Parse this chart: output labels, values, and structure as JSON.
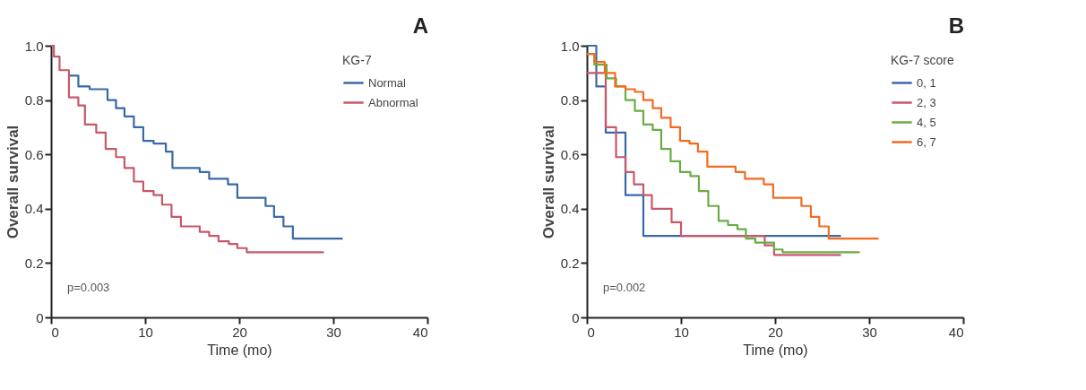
{
  "chart_data": [
    {
      "type": "step",
      "title": "A",
      "xlabel": "Time (mo)",
      "ylabel": "Overall survival",
      "legend_title": "KG-7",
      "legend": "top right",
      "grid": false,
      "marker": "none",
      "line_style": "solid",
      "xlim": [
        0,
        40
      ],
      "xticks": [
        0,
        10,
        20,
        30,
        40
      ],
      "ylim": [
        0,
        1
      ],
      "yticks": [
        0,
        0.2,
        0.4,
        0.6,
        0.8,
        {
          "value": 1,
          "label": "1.0"
        }
      ],
      "annotations": [
        "p=0.003"
      ],
      "series": [
        {
          "name": "Normal",
          "color": "#3a6aa5",
          "x": [
            1.9,
            2.9,
            4.1,
            6.0,
            6.9,
            7.8,
            8.8,
            9.8,
            10.9,
            12.2,
            12.9,
            15.8,
            16.8,
            18.8,
            19.8,
            22.8,
            23.7,
            24.7,
            25.7,
            31
          ],
          "values": [
            0.89,
            0.85,
            0.84,
            0.8,
            0.77,
            0.74,
            0.7,
            0.65,
            0.64,
            0.61,
            0.55,
            0.535,
            0.51,
            0.49,
            0.44,
            0.41,
            0.37,
            0.335,
            0.29,
            0.29
          ]
        },
        {
          "name": "Abnormal",
          "color": "#c8576a",
          "x": [
            0,
            0.3,
            0.9,
            1.9,
            2.9,
            3.6,
            4.8,
            5.8,
            6.9,
            7.8,
            8.8,
            9.8,
            10.9,
            11.8,
            12.8,
            13.8,
            15.8,
            16.8,
            17.8,
            18.9,
            19.8,
            20.8,
            29
          ],
          "values": [
            1.0,
            0.96,
            0.91,
            0.81,
            0.78,
            0.71,
            0.68,
            0.62,
            0.59,
            0.55,
            0.5,
            0.465,
            0.45,
            0.415,
            0.37,
            0.335,
            0.315,
            0.3,
            0.28,
            0.27,
            0.255,
            0.24,
            0.24
          ]
        }
      ]
    },
    {
      "type": "step",
      "title": "B",
      "xlabel": "Time (mo)",
      "ylabel": "Overall survival",
      "legend_title": "KG-7 score",
      "legend": "top right",
      "grid": false,
      "marker": "none",
      "line_style": "solid",
      "xlim": [
        0,
        40
      ],
      "xticks": [
        0,
        10,
        20,
        30,
        40
      ],
      "ylim": [
        0,
        1
      ],
      "yticks": [
        0,
        0.2,
        0.4,
        0.6,
        0.8,
        {
          "value": 1,
          "label": "1.0"
        }
      ],
      "annotations": [
        "p=0.002"
      ],
      "series": [
        {
          "name": "0, 1",
          "color": "#3a6aa5",
          "x": [
            0,
            1.0,
            2.0,
            4.1,
            6.0,
            27
          ],
          "values": [
            1.0,
            0.85,
            0.68,
            0.45,
            0.3,
            0.3
          ]
        },
        {
          "name": "2, 3",
          "color": "#c8576a",
          "x": [
            0,
            2.0,
            3.1,
            4.1,
            5.0,
            6.0,
            6.9,
            9.0,
            10.0,
            18.9,
            19.9,
            27
          ],
          "values": [
            0.9,
            0.7,
            0.59,
            0.535,
            0.49,
            0.45,
            0.4,
            0.35,
            0.3,
            0.265,
            0.23,
            0.23
          ]
        },
        {
          "name": "4, 5",
          "color": "#6aac44",
          "x": [
            0,
            0.8,
            2.1,
            3.1,
            4.1,
            5.1,
            6.0,
            7.0,
            7.9,
            8.9,
            9.9,
            11.0,
            11.9,
            12.9,
            14.0,
            15.0,
            16.0,
            16.9,
            17.9,
            19.9,
            20.8,
            29
          ],
          "values": [
            0.97,
            0.93,
            0.88,
            0.85,
            0.8,
            0.76,
            0.71,
            0.69,
            0.62,
            0.575,
            0.535,
            0.52,
            0.465,
            0.41,
            0.355,
            0.34,
            0.325,
            0.29,
            0.275,
            0.25,
            0.24,
            0.24
          ]
        },
        {
          "name": "6, 7",
          "color": "#f26b21",
          "x": [
            0,
            0.8,
            1.9,
            3.0,
            4.1,
            5.1,
            6.0,
            7.0,
            7.9,
            8.9,
            9.9,
            10.9,
            11.8,
            12.8,
            15.8,
            16.8,
            18.8,
            19.8,
            22.8,
            23.8,
            24.7,
            25.7,
            31
          ],
          "values": [
            0.97,
            0.94,
            0.9,
            0.85,
            0.84,
            0.83,
            0.8,
            0.77,
            0.735,
            0.7,
            0.65,
            0.64,
            0.61,
            0.555,
            0.535,
            0.51,
            0.49,
            0.44,
            0.41,
            0.37,
            0.335,
            0.29,
            0.29
          ]
        }
      ]
    }
  ]
}
